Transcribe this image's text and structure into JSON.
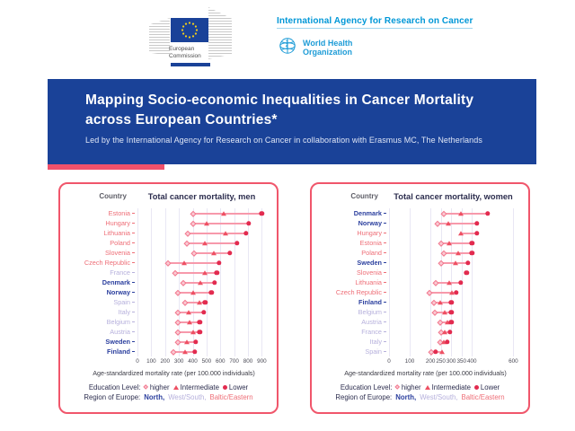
{
  "header": {
    "ec_caption": "European\nCommission",
    "iarc_label": "International Agency for Research on Cancer",
    "who_line1": "World Health",
    "who_line2": "Organization"
  },
  "banner": {
    "title": "Mapping Socio-economic Inequalities in Cancer Mortality across European Countries*",
    "subtitle": "Led by the International Agency for Research on Cancer in collaboration with Erasmus MC, The Netherlands"
  },
  "colors": {
    "banner_blue": "#1a4298",
    "accent_pink": "#f0516b",
    "north": "#2b3f9e",
    "west_south": "#b6b0dc",
    "baltic_eastern": "#ee6e77",
    "marker_line": "#f799ab",
    "marker_higher_fill": "#fbc9d3",
    "marker_higher_border": "#f2798f",
    "marker_intermediate": "#ee5063",
    "marker_lower": "#e22b4f",
    "grid": "#e9e7f4",
    "iarc_blue": "#0097d7",
    "who_blue": "#1e9cd7"
  },
  "legend": {
    "education_label": "Education Level:",
    "education_items": [
      {
        "marker": "diamond",
        "label": "higher"
      },
      {
        "marker": "triangle",
        "label": "Intermediate"
      },
      {
        "marker": "circle",
        "label": "Lower"
      }
    ],
    "region_label": "Region of Europe:",
    "region_items": [
      {
        "label": "North",
        "color_key": "north",
        "bold": true
      },
      {
        "label": "West/South",
        "color_key": "west_south",
        "bold": false
      },
      {
        "label": "Baltic/Eastern",
        "color_key": "baltic_eastern",
        "bold": false
      }
    ]
  },
  "chart_data": [
    {
      "type": "dumbbell-dot",
      "title": "Total cancer mortality, men",
      "col_header": "Country",
      "xlabel": "Age-standardized mortality rate (per 100.000 individuals)",
      "xlim": [
        0,
        930
      ],
      "xticks": [
        0,
        100,
        200,
        300,
        400,
        500,
        600,
        700,
        800,
        900
      ],
      "series_names": [
        "higher",
        "Intermediate",
        "Lower"
      ],
      "rows": [
        {
          "country": "Estonia",
          "region": "baltic_eastern",
          "higher": 400,
          "intermediate": 625,
          "lower": 900
        },
        {
          "country": "Hungary",
          "region": "baltic_eastern",
          "higher": 400,
          "intermediate": 500,
          "lower": 805
        },
        {
          "country": "Lithuania",
          "region": "baltic_eastern",
          "higher": 365,
          "intermediate": 635,
          "lower": 785
        },
        {
          "country": "Poland",
          "region": "baltic_eastern",
          "higher": 355,
          "intermediate": 490,
          "lower": 720
        },
        {
          "country": "Slovenia",
          "region": "baltic_eastern",
          "higher": 410,
          "intermediate": 550,
          "lower": 670
        },
        {
          "country": "Czech Republic",
          "region": "baltic_eastern",
          "higher": 220,
          "intermediate": 335,
          "lower": 590
        },
        {
          "country": "France",
          "region": "west_south",
          "higher": 270,
          "intermediate": 485,
          "lower": 575
        },
        {
          "country": "Denmark",
          "region": "north",
          "higher": 330,
          "intermediate": 455,
          "lower": 560
        },
        {
          "country": "Norway",
          "region": "north",
          "higher": 290,
          "intermediate": 405,
          "lower": 535
        },
        {
          "country": "Spain",
          "region": "west_south",
          "higher": 345,
          "intermediate": 450,
          "lower": 490
        },
        {
          "country": "Italy",
          "region": "west_south",
          "higher": 290,
          "intermediate": 370,
          "lower": 480
        },
        {
          "country": "Belgium",
          "region": "west_south",
          "higher": 290,
          "intermediate": 380,
          "lower": 450
        },
        {
          "country": "Austria",
          "region": "west_south",
          "higher": 295,
          "intermediate": 405,
          "lower": 450
        },
        {
          "country": "Sweden",
          "region": "north",
          "higher": 290,
          "intermediate": 355,
          "lower": 420
        },
        {
          "country": "Finland",
          "region": "north",
          "higher": 260,
          "intermediate": 345,
          "lower": 415
        }
      ]
    },
    {
      "type": "dumbbell-dot",
      "title": "Total cancer mortality, women",
      "col_header": "Country",
      "xlabel": "Age-standardized mortality rate (per 100.000 individuals)",
      "xlim": [
        0,
        620
      ],
      "xticks": [
        0,
        100,
        200,
        250,
        300,
        350,
        400,
        600
      ],
      "series_names": [
        "higher",
        "Intermediate",
        "Lower"
      ],
      "rows": [
        {
          "country": "Denmark",
          "region": "north",
          "higher": 265,
          "intermediate": 345,
          "lower": 475
        },
        {
          "country": "Norway",
          "region": "north",
          "higher": 235,
          "intermediate": 285,
          "lower": 425
        },
        {
          "country": "Hungary",
          "region": "baltic_eastern",
          "higher": null,
          "intermediate": 345,
          "lower": 425
        },
        {
          "country": "Estonia",
          "region": "baltic_eastern",
          "higher": 250,
          "intermediate": 290,
          "lower": 400
        },
        {
          "country": "Poland",
          "region": "baltic_eastern",
          "higher": 265,
          "intermediate": 335,
          "lower": 400
        },
        {
          "country": "Sweden",
          "region": "north",
          "higher": 250,
          "intermediate": 320,
          "lower": 380
        },
        {
          "country": "Slovenia",
          "region": "baltic_eastern",
          "higher": null,
          "intermediate": null,
          "lower": 375
        },
        {
          "country": "Lithuania",
          "region": "baltic_eastern",
          "higher": 225,
          "intermediate": 290,
          "lower": 345
        },
        {
          "country": "Czech Republic",
          "region": "baltic_eastern",
          "higher": 195,
          "intermediate": 305,
          "lower": 325
        },
        {
          "country": "Finland",
          "region": "north",
          "higher": 215,
          "intermediate": 245,
          "lower": 300
        },
        {
          "country": "Belgium",
          "region": "west_south",
          "higher": 220,
          "intermediate": 270,
          "lower": 300
        },
        {
          "country": "Austria",
          "region": "west_south",
          "higher": 245,
          "intermediate": 280,
          "lower": 300
        },
        {
          "country": "France",
          "region": "west_south",
          "higher": 250,
          "intermediate": 270,
          "lower": 295
        },
        {
          "country": "Italy",
          "region": "west_south",
          "higher": 245,
          "intermediate": 265,
          "lower": 280
        },
        {
          "country": "Spain",
          "region": "west_south",
          "higher": 205,
          "intermediate": 255,
          "lower": 225
        }
      ]
    }
  ]
}
